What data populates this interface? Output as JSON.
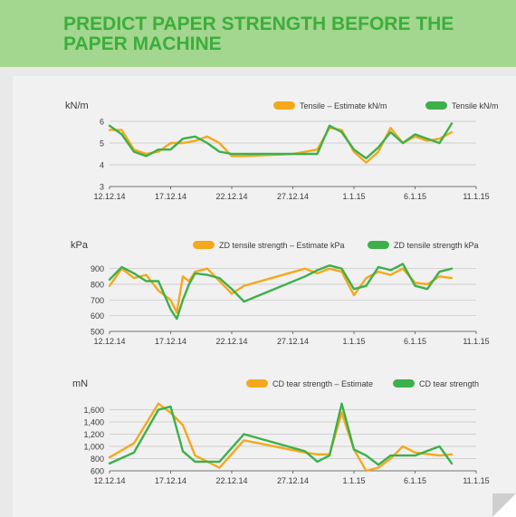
{
  "title": "PREDICT PAPER STRENGTH BEFORE THE PAPER MACHINE",
  "colors": {
    "estimate": "#f5a81c",
    "measured": "#3cb04a",
    "title": "#3cae3c",
    "banner": "#a3d68e",
    "axis": "#555555",
    "grid": "#c4c4c4",
    "text": "#3a3a3a"
  },
  "chart_data": [
    {
      "type": "line",
      "ylabel": "kN/m",
      "ylim": [
        3,
        6
      ],
      "yticks": [
        3,
        4,
        5,
        6
      ],
      "ytick_labels": [
        "3",
        "4",
        "5",
        "6"
      ],
      "xlim": [
        "2014-12-12",
        "2015-01-11"
      ],
      "xtick_labels": [
        "12.12.14",
        "17.12.14",
        "22.12.14",
        "27.12.14",
        "1.1.15",
        "6.1.15",
        "11.1.15"
      ],
      "grid": true,
      "legend": "top",
      "series": [
        {
          "name": "Tensile – Estimate kN/m",
          "color": "#f5a81c",
          "x": [
            "2014-12-12",
            "2014-12-13",
            "2014-12-14",
            "2014-12-15",
            "2014-12-16",
            "2014-12-17",
            "2014-12-18",
            "2014-12-19",
            "2014-12-20",
            "2014-12-21",
            "2014-12-22",
            "2014-12-23",
            "2014-12-27",
            "2014-12-29",
            "2014-12-30",
            "2014-12-31",
            "2015-01-01",
            "2015-01-02",
            "2015-01-03",
            "2015-01-04",
            "2015-01-05",
            "2015-01-06",
            "2015-01-07",
            "2015-01-08",
            "2015-01-09"
          ],
          "y": [
            5.6,
            5.6,
            4.7,
            4.5,
            4.6,
            5.0,
            5.0,
            5.1,
            5.3,
            5.0,
            4.4,
            4.4,
            4.5,
            4.7,
            5.7,
            5.6,
            4.6,
            4.1,
            4.6,
            5.7,
            5.0,
            5.3,
            5.1,
            5.2,
            5.5
          ]
        },
        {
          "name": "Tensile kN/m",
          "color": "#3cb04a",
          "x": [
            "2014-12-12",
            "2014-12-13",
            "2014-12-14",
            "2014-12-15",
            "2014-12-16",
            "2014-12-17",
            "2014-12-18",
            "2014-12-19",
            "2014-12-20",
            "2014-12-21",
            "2014-12-22",
            "2014-12-23",
            "2014-12-27",
            "2014-12-29",
            "2014-12-30",
            "2014-12-31",
            "2015-01-01",
            "2015-01-02",
            "2015-01-03",
            "2015-01-04",
            "2015-01-05",
            "2015-01-06",
            "2015-01-07",
            "2015-01-08",
            "2015-01-09"
          ],
          "y": [
            5.8,
            5.4,
            4.6,
            4.4,
            4.7,
            4.7,
            5.2,
            5.3,
            5.0,
            4.6,
            4.5,
            4.5,
            4.5,
            4.5,
            5.8,
            5.5,
            4.7,
            4.3,
            4.8,
            5.5,
            5.0,
            5.4,
            5.2,
            5.0,
            5.9
          ]
        }
      ]
    },
    {
      "type": "line",
      "ylabel": "kPa",
      "ylim": [
        500,
        950
      ],
      "yticks": [
        500,
        600,
        700,
        800,
        900
      ],
      "ytick_labels": [
        "500",
        "600",
        "700",
        "800",
        "900"
      ],
      "xlim": [
        "2014-12-12",
        "2015-01-11"
      ],
      "xtick_labels": [
        "12.12.14",
        "17.12.14",
        "22.12.14",
        "27.12.14",
        "1.1.15",
        "6.1.15",
        "11.1.15"
      ],
      "grid": true,
      "legend": "top",
      "series": [
        {
          "name": "ZD tensile strength – Estimate kPa",
          "color": "#f5a81c",
          "x": [
            "2014-12-12",
            "2014-12-13",
            "2014-12-14",
            "2014-12-15",
            "2014-12-16",
            "2014-12-17",
            "2014-12-17T12:00",
            "2014-12-18",
            "2014-12-18T12:00",
            "2014-12-19",
            "2014-12-20",
            "2014-12-21",
            "2014-12-22",
            "2014-12-23",
            "2014-12-28",
            "2014-12-29",
            "2014-12-30",
            "2014-12-31",
            "2015-01-01",
            "2015-01-02",
            "2015-01-03",
            "2015-01-04",
            "2015-01-05",
            "2015-01-06",
            "2015-01-07",
            "2015-01-08",
            "2015-01-09"
          ],
          "y": [
            790,
            900,
            840,
            860,
            760,
            700,
            620,
            850,
            820,
            880,
            900,
            820,
            740,
            790,
            900,
            870,
            900,
            880,
            730,
            840,
            880,
            860,
            900,
            810,
            800,
            850,
            840
          ]
        },
        {
          "name": "ZD tensile strength  kPa",
          "color": "#3cb04a",
          "x": [
            "2014-12-12",
            "2014-12-13",
            "2014-12-14",
            "2014-12-15",
            "2014-12-16",
            "2014-12-17",
            "2014-12-17T12:00",
            "2014-12-18",
            "2014-12-18T12:00",
            "2014-12-19",
            "2014-12-20",
            "2014-12-21",
            "2014-12-22",
            "2014-12-23",
            "2014-12-28",
            "2014-12-29",
            "2014-12-30",
            "2014-12-31",
            "2015-01-01",
            "2015-01-02",
            "2015-01-03",
            "2015-01-04",
            "2015-01-05",
            "2015-01-06",
            "2015-01-07",
            "2015-01-08",
            "2015-01-09"
          ],
          "y": [
            830,
            910,
            870,
            820,
            820,
            640,
            580,
            700,
            800,
            870,
            860,
            840,
            770,
            690,
            850,
            890,
            920,
            900,
            770,
            790,
            910,
            890,
            930,
            790,
            770,
            880,
            900
          ]
        }
      ]
    },
    {
      "type": "line",
      "ylabel": "mN",
      "ylim": [
        600,
        1800
      ],
      "yticks": [
        600,
        800,
        1000,
        1200,
        1400,
        1600
      ],
      "ytick_labels": [
        "600",
        "800",
        "1,000",
        "1,200",
        "1,400",
        "1,600"
      ],
      "xlim": [
        "2014-12-12",
        "2015-01-11"
      ],
      "xtick_labels": [
        "12.12.14",
        "17.12.14",
        "22.12.14",
        "27.12.14",
        "1.1.15",
        "6.1.15",
        "11.1.15"
      ],
      "grid": true,
      "legend": "top",
      "series": [
        {
          "name": "CD tear strength – Estimate",
          "color": "#f5a81c",
          "x": [
            "2014-12-12",
            "2014-12-14",
            "2014-12-16",
            "2014-12-17",
            "2014-12-18",
            "2014-12-19",
            "2014-12-21",
            "2014-12-23",
            "2014-12-28",
            "2014-12-29",
            "2014-12-30",
            "2014-12-31",
            "2015-01-01",
            "2015-01-02",
            "2015-01-03",
            "2015-01-04",
            "2015-01-05",
            "2015-01-06",
            "2015-01-08",
            "2015-01-09"
          ],
          "y": [
            820,
            1050,
            1700,
            1550,
            1350,
            850,
            650,
            1100,
            900,
            870,
            870,
            1550,
            950,
            600,
            650,
            800,
            1000,
            900,
            850,
            870
          ]
        },
        {
          "name": "CD tear strength",
          "color": "#3cb04a",
          "x": [
            "2014-12-12",
            "2014-12-14",
            "2014-12-16",
            "2014-12-17",
            "2014-12-18",
            "2014-12-19",
            "2014-12-21",
            "2014-12-23",
            "2014-12-28",
            "2014-12-29",
            "2014-12-30",
            "2014-12-31",
            "2015-01-01",
            "2015-01-02",
            "2015-01-03",
            "2015-01-04",
            "2015-01-05",
            "2015-01-06",
            "2015-01-08",
            "2015-01-09"
          ],
          "y": [
            720,
            900,
            1600,
            1650,
            920,
            750,
            750,
            1200,
            920,
            750,
            850,
            1700,
            950,
            850,
            700,
            850,
            850,
            850,
            1000,
            720
          ]
        }
      ]
    }
  ]
}
